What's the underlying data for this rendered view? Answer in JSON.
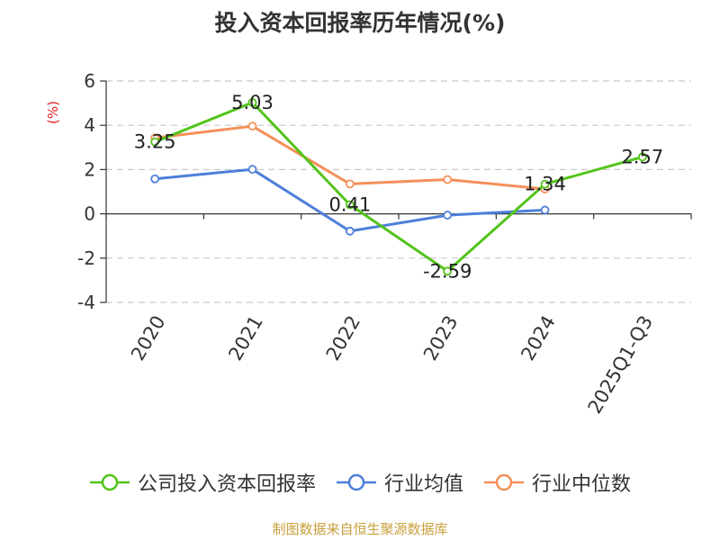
{
  "title": "投入资本回报率历年情况(%)",
  "source": "制图数据来自恒生聚源数据库",
  "chart_data": {
    "type": "line",
    "title": "投入资本回报率历年情况(%)",
    "ylabel": "(%)",
    "xlabel": "",
    "categories": [
      "2020",
      "2021",
      "2022",
      "2023",
      "2024",
      "2025Q1-Q3"
    ],
    "yticks": [
      "6",
      "4",
      "2",
      "0",
      "-2",
      "-4"
    ],
    "ylim": [
      -4,
      6
    ],
    "grid": true,
    "legend_position": "bottom",
    "series": [
      {
        "name": "公司投入资本回报率",
        "color": "#52c41a",
        "values": [
          3.25,
          5.03,
          0.41,
          -2.59,
          1.34,
          2.57
        ],
        "labels": [
          "3.25",
          "5.03",
          "0.41",
          "-2.59",
          "1.34",
          "2.57"
        ]
      },
      {
        "name": "行业均值",
        "color": "#4e7fd9",
        "values": [
          1.58,
          2.01,
          -0.78,
          -0.06,
          0.17,
          null
        ],
        "labels": []
      },
      {
        "name": "行业中位数",
        "color": "#f4905a",
        "values": [
          3.43,
          3.96,
          1.35,
          1.55,
          1.12,
          null
        ],
        "labels": []
      }
    ]
  }
}
